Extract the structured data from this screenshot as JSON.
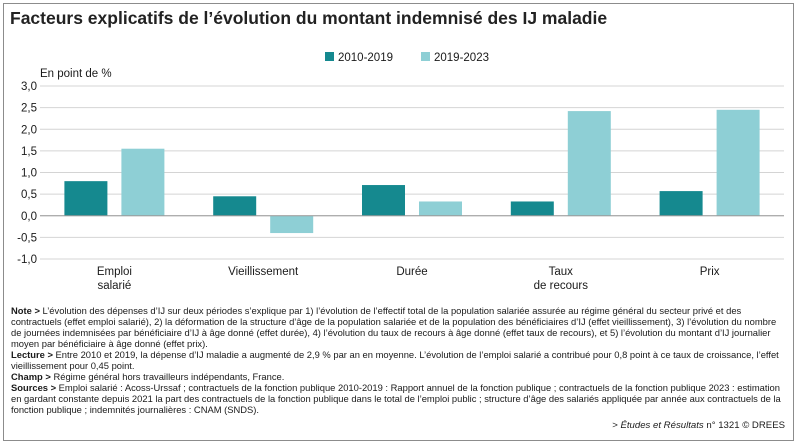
{
  "title": "Facteurs explicatifs de l’évolution du montant indemnisé des IJ maladie",
  "chart_data": {
    "type": "bar",
    "ylabel": "En point de %",
    "ylim": [
      -1.0,
      3.0
    ],
    "yticks": [
      "3,0",
      "2,5",
      "2,0",
      "1,5",
      "1,0",
      "0,5",
      "0,0",
      "-0,5",
      "-1,0"
    ],
    "categories": [
      [
        "Emploi",
        "salarié"
      ],
      [
        "Vieillissement"
      ],
      [
        "Durée"
      ],
      [
        "Taux",
        "de recours"
      ],
      [
        "Prix"
      ]
    ],
    "series": [
      {
        "name": "2010-2019",
        "color": "#15898f",
        "values": [
          0.8,
          0.45,
          0.71,
          0.33,
          0.57
        ]
      },
      {
        "name": "2019-2023",
        "color": "#8ecfd5",
        "values": [
          1.55,
          -0.4,
          0.33,
          2.42,
          2.45
        ]
      }
    ],
    "legend": "top",
    "grid": true
  },
  "notes": {
    "note_label": "Note >",
    "note_text": " L’évolution des dépenses d’IJ sur deux périodes s’explique par 1) l’évolution de l’effectif total de la population salariée assurée au régime général du secteur privé et des contractuels (effet emploi salarié), 2) la déformation de la structure d’âge de la population salariée et de la population des bénéficiaires d’IJ (effet vieillissement), 3) l’évolution du nombre de journées indemnisées par bénéficiaire d’IJ à âge donné (effet durée), 4) l’évolution du taux de recours à âge donné (effet taux de recours), et 5) l’évolution du montant d’IJ journalier moyen par bénéficiaire à âge donné (effet prix).",
    "lecture_label": "Lecture >",
    "lecture_text": " Entre 2010 et 2019, la dépense d’IJ maladie a augmenté de 2,9 % par an en moyenne. L’évolution de l’emploi salarié a contribué pour 0,8 point à ce taux de croissance, l’effet vieillissement pour 0,45 point.",
    "champ_label": "Champ >",
    "champ_text": " Régime général hors travailleurs indépendants, France.",
    "sources_label": "Sources >",
    "sources_text": " Emploi salarié : Acoss-Urssaf ; contractuels de la fonction publique 2010-2019 : Rapport annuel de la fonction publique ; contractuels de la fonction publique 2023 : estimation en gardant constante depuis 2021 la part des contractuels de la fonction publique dans le total de l’emploi public ; structure d’âge des salariés appliquée par année aux contractuels de la fonction publique ; indemnités journalières : CNAM (SNDS)."
  },
  "credit": {
    "prefix": "> ",
    "publication": "Études et Résultats",
    "suffix": " n° 1321 © DREES"
  }
}
